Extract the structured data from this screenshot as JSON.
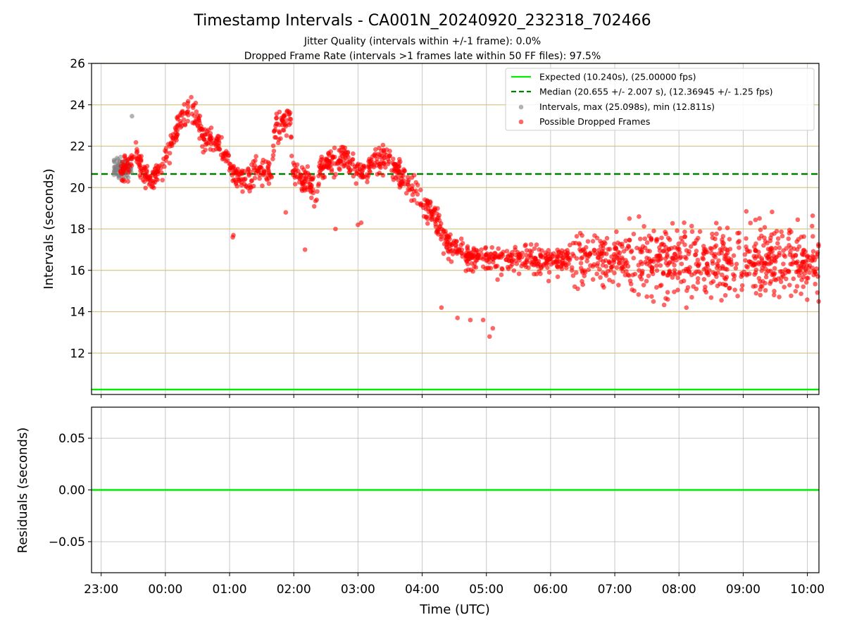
{
  "chart_data": {
    "type": "scatter",
    "title": "Timestamp Intervals - CA001N_20240920_232318_702466",
    "subtitle_lines": [
      "Jitter Quality (intervals within +/-1 frame): 0.0%",
      "Dropped Frame Rate (intervals >1 frames late within 50 FF files): 97.5%"
    ],
    "xlabel": "Time (UTC)",
    "x_ticks": [
      "23:00",
      "00:00",
      "01:00",
      "02:00",
      "03:00",
      "04:00",
      "05:00",
      "06:00",
      "07:00",
      "08:00",
      "09:00",
      "10:00"
    ],
    "x_range_hours": [
      -0.15,
      11.18
    ],
    "grid": true,
    "legend_position": "top-right",
    "panels": [
      {
        "ylabel": "Intervals (seconds)",
        "ylim": [
          10,
          26
        ],
        "y_ticks": [
          12,
          14,
          16,
          18,
          20,
          22,
          24,
          26
        ],
        "lines": [
          {
            "label": "Expected (10.240s), (25.00000 fps)",
            "y": 10.24,
            "color": "#00ee00",
            "style": "solid"
          },
          {
            "label": "Median (20.655 +/- 2.007 s), (12.36945 +/- 1.25 fps)",
            "y": 20.655,
            "color": "#008000",
            "style": "dashed"
          }
        ],
        "scatter": [
          {
            "label": "Intervals, max (25.098s), min (12.811s)",
            "color": "#808080"
          },
          {
            "label": "Possible Dropped Frames",
            "color": "#ff0000"
          }
        ],
        "trend_points": [
          [
            0.4,
            20.8
          ],
          [
            0.7,
            21.2
          ],
          [
            0.9,
            21.5
          ],
          [
            1.1,
            20.8
          ],
          [
            1.4,
            20.4
          ],
          [
            1.7,
            21.0
          ],
          [
            2.0,
            22.3
          ],
          [
            2.3,
            23.3
          ],
          [
            2.45,
            23.5
          ],
          [
            2.6,
            24.0
          ],
          [
            2.8,
            23.3
          ],
          [
            3.0,
            22.5
          ],
          [
            3.2,
            22.4
          ],
          [
            3.4,
            22.2
          ],
          [
            3.6,
            21.8
          ],
          [
            3.8,
            21.0
          ],
          [
            4.0,
            20.6
          ],
          [
            4.3,
            20.4
          ],
          [
            4.6,
            20.7
          ],
          [
            4.9,
            20.8
          ],
          [
            5.1,
            20.7
          ],
          [
            5.2,
            22.8
          ],
          [
            5.4,
            23.0
          ],
          [
            5.6,
            23.4
          ],
          [
            5.7,
            23.3
          ],
          [
            5.75,
            20.7
          ],
          [
            6.0,
            20.6
          ],
          [
            6.3,
            20.3
          ],
          [
            6.5,
            19.6
          ],
          [
            6.6,
            21.0
          ],
          [
            7.0,
            21.3
          ],
          [
            7.4,
            21.4
          ],
          [
            7.7,
            21.0
          ],
          [
            8.0,
            20.6
          ],
          [
            8.1,
            20.8
          ],
          [
            8.3,
            21.2
          ],
          [
            8.7,
            21.5
          ],
          [
            9.0,
            20.8
          ],
          [
            9.3,
            20.4
          ],
          [
            9.6,
            19.8
          ],
          [
            9.9,
            19.0
          ],
          [
            10.2,
            18.7
          ],
          [
            10.5,
            17.5
          ],
          [
            10.8,
            17.0
          ],
          [
            11.1,
            16.7
          ],
          [
            11.4,
            16.6
          ],
          [
            11.7,
            16.8
          ],
          [
            12.0,
            16.6
          ],
          [
            12.2,
            16.5
          ]
        ],
        "gray_x_range_hours": [
          -0.15,
          0.15
        ],
        "gray_center": 20.9,
        "red_point_count": 1850,
        "outlier_points": [
          [
            0.1,
            23.45
          ],
          [
            4.1,
            17.6
          ],
          [
            4.12,
            17.7
          ],
          [
            5.75,
            18.8
          ],
          [
            6.35,
            17.0
          ],
          [
            7.3,
            18.0
          ],
          [
            8.0,
            18.2
          ],
          [
            8.1,
            18.3
          ],
          [
            10.6,
            14.2
          ],
          [
            11.1,
            13.7
          ],
          [
            11.5,
            13.6
          ],
          [
            11.9,
            13.6
          ],
          [
            12.1,
            12.8
          ],
          [
            12.2,
            13.2
          ]
        ]
      },
      {
        "ylabel": "Residuals (seconds)",
        "ylim": [
          -0.08,
          0.08
        ],
        "y_ticks": [
          "0.05",
          "0.00",
          "−0.05"
        ],
        "y_tick_values": [
          0.05,
          0.0,
          -0.05
        ],
        "lines": [
          {
            "y": 0.0,
            "color": "#00ee00"
          }
        ]
      }
    ]
  }
}
